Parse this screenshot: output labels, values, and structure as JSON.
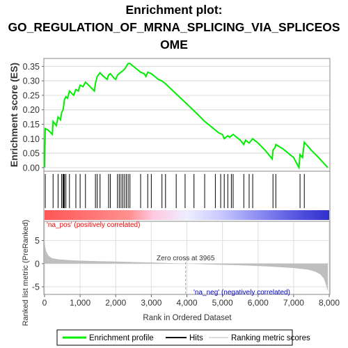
{
  "title_lines": [
    "Enrichment plot:",
    "GO_REGULATION_OF_MRNA_SPLICING_VIA_SPLICEOS",
    "OME"
  ],
  "colors": {
    "enrichment_line": "#00ee00",
    "hits": "#000000",
    "metric_fill": "#bebebe",
    "pos_label": "#ff0000",
    "neg_label": "#0000cc"
  },
  "chart_data": [
    {
      "type": "line",
      "name": "enrichment-profile",
      "ylabel": "Enrichment score (ES)",
      "ylim": [
        -0.01,
        0.375
      ],
      "xlim": [
        0,
        8000
      ],
      "yticks": [
        "0.00",
        "0.05",
        "0.10",
        "0.15",
        "0.20",
        "0.25",
        "0.30",
        "0.35"
      ],
      "ytick_values": [
        0,
        0.05,
        0.1,
        0.15,
        0.2,
        0.25,
        0.3,
        0.35
      ],
      "grid": true,
      "points": [
        [
          0,
          0
        ],
        [
          20,
          0.135
        ],
        [
          100,
          0.13
        ],
        [
          220,
          0.115
        ],
        [
          240,
          0.16
        ],
        [
          330,
          0.145
        ],
        [
          380,
          0.175
        ],
        [
          450,
          0.165
        ],
        [
          480,
          0.19
        ],
        [
          520,
          0.2
        ],
        [
          540,
          0.215
        ],
        [
          560,
          0.235
        ],
        [
          600,
          0.245
        ],
        [
          650,
          0.24
        ],
        [
          700,
          0.265
        ],
        [
          820,
          0.25
        ],
        [
          880,
          0.27
        ],
        [
          950,
          0.265
        ],
        [
          1000,
          0.285
        ],
        [
          1080,
          0.28
        ],
        [
          1150,
          0.295
        ],
        [
          1200,
          0.29
        ],
        [
          1400,
          0.265
        ],
        [
          1430,
          0.29
        ],
        [
          1480,
          0.315
        ],
        [
          1560,
          0.328
        ],
        [
          1620,
          0.32
        ],
        [
          1760,
          0.305
        ],
        [
          1800,
          0.32
        ],
        [
          1850,
          0.325
        ],
        [
          1950,
          0.31
        ],
        [
          2000,
          0.305
        ],
        [
          2050,
          0.32
        ],
        [
          2100,
          0.325
        ],
        [
          2150,
          0.33
        ],
        [
          2200,
          0.335
        ],
        [
          2250,
          0.34
        ],
        [
          2300,
          0.35
        ],
        [
          2350,
          0.36
        ],
        [
          2400,
          0.36
        ],
        [
          2500,
          0.35
        ],
        [
          2600,
          0.34
        ],
        [
          2700,
          0.33
        ],
        [
          2800,
          0.325
        ],
        [
          2850,
          0.315
        ],
        [
          2900,
          0.33
        ],
        [
          3000,
          0.325
        ],
        [
          3100,
          0.315
        ],
        [
          3200,
          0.305
        ],
        [
          3300,
          0.3
        ],
        [
          3400,
          0.29
        ],
        [
          3700,
          0.255
        ],
        [
          4000,
          0.22
        ],
        [
          4300,
          0.185
        ],
        [
          4500,
          0.16
        ],
        [
          4600,
          0.15
        ],
        [
          4800,
          0.13
        ],
        [
          4900,
          0.12
        ],
        [
          5000,
          0.115
        ],
        [
          5050,
          0.1
        ],
        [
          5150,
          0.11
        ],
        [
          5200,
          0.105
        ],
        [
          5300,
          0.115
        ],
        [
          5500,
          0.095
        ],
        [
          5600,
          0.08
        ],
        [
          5650,
          0.095
        ],
        [
          5750,
          0.085
        ],
        [
          5850,
          0.1
        ],
        [
          6000,
          0.085
        ],
        [
          6200,
          0.06
        ],
        [
          6400,
          0.03
        ],
        [
          6420,
          0.06
        ],
        [
          6480,
          0.07
        ],
        [
          6500,
          0.08
        ],
        [
          6700,
          0.065
        ],
        [
          7000,
          0.035
        ],
        [
          7150,
          0.0
        ],
        [
          7180,
          0.045
        ],
        [
          7250,
          0.035
        ],
        [
          7300,
          0.088
        ],
        [
          7500,
          0.06
        ],
        [
          7700,
          0.035
        ],
        [
          7960,
          0.0
        ]
      ]
    },
    {
      "type": "hits",
      "name": "hits",
      "positions": [
        20,
        240,
        380,
        480,
        520,
        540,
        560,
        600,
        700,
        880,
        1000,
        1150,
        1430,
        1480,
        1560,
        1800,
        1850,
        2050,
        2100,
        2150,
        2200,
        2250,
        2300,
        2350,
        2400,
        2700,
        2900,
        3000,
        3300,
        3400,
        3700,
        3950,
        4200,
        4500,
        4800,
        4950,
        5050,
        5150,
        5250,
        5300,
        5600,
        5750,
        5850,
        6420,
        6500,
        7180,
        7300
      ]
    },
    {
      "type": "area",
      "name": "ranked-list-metric",
      "ylabel": "Ranked list metric (PreRanked)",
      "xlabel": "Rank in Ordered Dataset",
      "ylim": [
        -6.5,
        9
      ],
      "xlim": [
        0,
        8000
      ],
      "yticks": [
        "-5",
        "0",
        "5"
      ],
      "ytick_values": [
        -5,
        0,
        5
      ],
      "xticks": [
        "0",
        "1,000",
        "2,000",
        "3,000",
        "4,000",
        "5,000",
        "6,000",
        "7,000",
        "8,000"
      ],
      "xtick_values": [
        0,
        1000,
        2000,
        3000,
        4000,
        5000,
        6000,
        7000,
        8000
      ],
      "points": [
        [
          0,
          4.5
        ],
        [
          40,
          2.8
        ],
        [
          100,
          1.8
        ],
        [
          200,
          1.2
        ],
        [
          400,
          0.9
        ],
        [
          700,
          0.75
        ],
        [
          1000,
          0.65
        ],
        [
          1500,
          0.55
        ],
        [
          2000,
          0.45
        ],
        [
          2500,
          0.35
        ],
        [
          3000,
          0.25
        ],
        [
          3500,
          0.12
        ],
        [
          3965,
          0
        ],
        [
          4500,
          -0.15
        ],
        [
          5000,
          -0.25
        ],
        [
          5500,
          -0.35
        ],
        [
          6000,
          -0.5
        ],
        [
          6500,
          -0.7
        ],
        [
          7000,
          -0.95
        ],
        [
          7400,
          -1.3
        ],
        [
          7600,
          -1.7
        ],
        [
          7750,
          -2.3
        ],
        [
          7850,
          -3.2
        ],
        [
          7920,
          -4.8
        ],
        [
          7960,
          -6.0
        ],
        [
          7960,
          0
        ]
      ],
      "zero_cross_label": "Zero cross at 3965",
      "pos_label": "'na_pos' (positively correlated)",
      "neg_label": "'na_neg' (negatively correlated)"
    }
  ],
  "legend": {
    "items": [
      {
        "label": "Enrichment profile"
      },
      {
        "label": "Hits"
      },
      {
        "label": "Ranking metric scores"
      }
    ]
  }
}
